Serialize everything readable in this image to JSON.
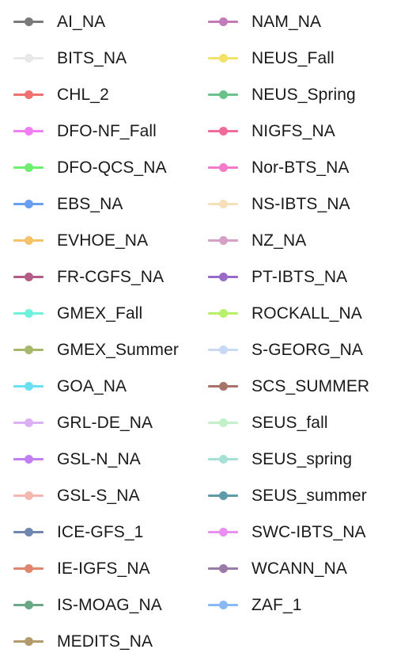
{
  "chart_data": {
    "type": "legend",
    "legend_entries": [
      {
        "name": "AI_NA",
        "color": "#7a7a7a"
      },
      {
        "name": "BITS_NA",
        "color": "#e8e8e8"
      },
      {
        "name": "CHL_2",
        "color": "#f07070"
      },
      {
        "name": "DFO-NF_Fall",
        "color": "#f27ff2"
      },
      {
        "name": "DFO-QCS_NA",
        "color": "#6ef06e"
      },
      {
        "name": "EBS_NA",
        "color": "#6a9ef0"
      },
      {
        "name": "EVHOE_NA",
        "color": "#f5c26a"
      },
      {
        "name": "FR-CGFS_NA",
        "color": "#b35c87"
      },
      {
        "name": "GMEX_Fall",
        "color": "#6ef2dc"
      },
      {
        "name": "GMEX_Summer",
        "color": "#a8b86a"
      },
      {
        "name": "GOA_NA",
        "color": "#6ae0f2"
      },
      {
        "name": "GRL-DE_NA",
        "color": "#dbb0f5"
      },
      {
        "name": "GSL-N_NA",
        "color": "#c27ff2"
      },
      {
        "name": "GSL-S_NA",
        "color": "#f5b8b0"
      },
      {
        "name": "ICE-GFS_1",
        "color": "#6f86b0"
      },
      {
        "name": "IE-IGFS_NA",
        "color": "#e0866e"
      },
      {
        "name": "IS-MOAG_NA",
        "color": "#6aa886"
      },
      {
        "name": "MEDITS_NA",
        "color": "#b39a6a"
      },
      {
        "name": "NAM_NA",
        "color": "#c27ab8"
      },
      {
        "name": "NEUS_Fall",
        "color": "#f2e26a"
      },
      {
        "name": "NEUS_Spring",
        "color": "#6ac28a"
      },
      {
        "name": "NIGFS_NA",
        "color": "#f06a9c"
      },
      {
        "name": "Nor-BTS_NA",
        "color": "#f27ac8"
      },
      {
        "name": "NS-IBTS_NA",
        "color": "#f5e0b8"
      },
      {
        "name": "NZ_NA",
        "color": "#d4a0c4"
      },
      {
        "name": "PT-IBTS_NA",
        "color": "#9a6ac8"
      },
      {
        "name": "ROCKALL_NA",
        "color": "#b8f06a"
      },
      {
        "name": "S-GEORG_NA",
        "color": "#c8d8f5"
      },
      {
        "name": "SCS_SUMMER",
        "color": "#a8746a"
      },
      {
        "name": "SEUS_fall",
        "color": "#c2f0c8"
      },
      {
        "name": "SEUS_spring",
        "color": "#a8e0d8"
      },
      {
        "name": "SEUS_summer",
        "color": "#5e9aa8"
      },
      {
        "name": "SWC-IBTS_NA",
        "color": "#ea8ef2"
      },
      {
        "name": "WCANN_NA",
        "color": "#9a7aa8"
      },
      {
        "name": "ZAF_1",
        "color": "#8ab8f5"
      }
    ]
  }
}
